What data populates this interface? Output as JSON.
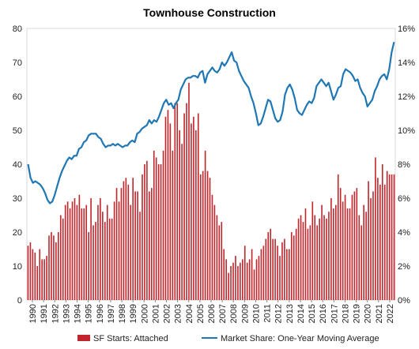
{
  "chart_data": {
    "type": "bar+line",
    "title": "Townhouse Construction",
    "left_axis": {
      "ylim": [
        0,
        80
      ],
      "ticks": [
        "0",
        "10",
        "20",
        "30",
        "40",
        "50",
        "60",
        "70",
        "80"
      ]
    },
    "right_axis": {
      "ylim": [
        0,
        16
      ],
      "ticks": [
        "0%",
        "2%",
        "4%",
        "6%",
        "8%",
        "10%",
        "12%",
        "14%",
        "16%"
      ]
    },
    "x_ticks": [
      "1990",
      "1991",
      "1992",
      "1993",
      "1994",
      "1995",
      "1996",
      "1997",
      "1998",
      "1999",
      "2000",
      "2001",
      "2002",
      "2003",
      "2004",
      "2005",
      "2006",
      "2007",
      "2008",
      "2009",
      "2010",
      "2011",
      "2012",
      "2013",
      "2014",
      "2015",
      "2016",
      "2017",
      "2018",
      "2019",
      "2020",
      "2021",
      "2022"
    ],
    "grid": false,
    "legend_position": "bottom",
    "series": [
      {
        "name": "SF Starts: Attached",
        "kind": "bar",
        "axis": "left",
        "color": "#c0272d",
        "frequency": "quarterly",
        "start": "1990 Q1",
        "values": [
          16,
          17,
          15,
          14,
          10,
          15,
          12,
          12,
          13,
          19,
          20,
          19,
          17,
          20,
          25,
          24,
          28,
          29,
          27,
          29,
          30,
          28,
          31,
          27,
          27,
          28,
          20,
          30,
          22,
          23,
          28,
          30,
          26,
          23,
          28,
          24,
          24,
          29,
          33,
          29,
          33,
          35,
          36,
          34,
          28,
          36,
          32,
          32,
          26,
          37,
          40,
          41,
          32,
          33,
          44,
          42,
          40,
          40,
          44,
          54,
          56,
          52,
          44,
          58,
          58,
          50,
          46,
          55,
          58,
          64,
          52,
          54,
          50,
          55,
          37,
          38,
          44,
          38,
          36,
          31,
          28,
          25,
          22,
          23,
          15,
          12,
          8,
          10,
          11,
          13,
          10,
          11,
          12,
          16,
          11,
          12,
          15,
          9,
          12,
          13,
          15,
          16,
          18,
          20,
          21,
          18,
          18,
          16,
          13,
          17,
          18,
          15,
          15,
          20,
          19,
          21,
          24,
          25,
          23,
          27,
          21,
          22,
          29,
          25,
          22,
          24,
          28,
          25,
          24,
          26,
          30,
          27,
          28,
          37,
          33,
          29,
          31,
          27,
          27,
          31,
          32,
          33,
          25,
          22,
          28,
          26,
          35,
          30,
          32,
          42,
          36,
          34,
          40,
          34,
          38,
          37,
          37,
          37
        ]
      },
      {
        "name": "Market Share: One-Year Moving Average",
        "kind": "line",
        "axis": "right",
        "color": "#1f77b4",
        "values": [
          8.0,
          7.2,
          6.9,
          7.0,
          6.9,
          6.8,
          6.6,
          6.3,
          5.9,
          5.7,
          5.8,
          6.2,
          6.7,
          7.2,
          7.6,
          7.9,
          8.2,
          8.4,
          8.3,
          8.5,
          8.5,
          8.9,
          9.0,
          9.3,
          9.4,
          9.7,
          9.8,
          9.8,
          9.8,
          9.6,
          9.5,
          9.2,
          9.0,
          9.1,
          9.1,
          9.2,
          9.1,
          9.2,
          9.1,
          9.0,
          9.1,
          9.1,
          9.3,
          9.4,
          9.3,
          9.8,
          9.9,
          10.1,
          10.2,
          10.3,
          10.6,
          10.4,
          10.6,
          10.5,
          10.8,
          11.2,
          11.6,
          11.8,
          11.5,
          11.6,
          11.3,
          11.6,
          11.8,
          12.4,
          12.7,
          13.0,
          13.1,
          13.1,
          13.2,
          13.2,
          13.1,
          13.4,
          13.5,
          12.8,
          13.3,
          13.5,
          13.7,
          13.5,
          13.4,
          13.6,
          14.0,
          13.8,
          14.0,
          14.3,
          14.6,
          14.1,
          14.0,
          13.5,
          13.2,
          12.9,
          12.7,
          12.5,
          12.0,
          11.6,
          11.0,
          10.3,
          10.4,
          10.8,
          11.3,
          11.8,
          11.7,
          11.2,
          10.7,
          10.5,
          10.6,
          11.1,
          12.1,
          12.5,
          12.7,
          12.4,
          11.9,
          11.2,
          11.0,
          10.9,
          11.2,
          11.5,
          11.7,
          11.6,
          11.9,
          12.6,
          12.8,
          13.0,
          12.8,
          12.6,
          12.8,
          12.3,
          11.8,
          12.1,
          12.5,
          12.6,
          13.3,
          13.6,
          13.5,
          13.4,
          13.2,
          12.9,
          13.0,
          12.5,
          12.2,
          12.0,
          11.4,
          11.6,
          11.8,
          12.3,
          12.6,
          13.0,
          13.2,
          13.3,
          13.0,
          13.6,
          14.6,
          15.2
        ]
      }
    ]
  }
}
